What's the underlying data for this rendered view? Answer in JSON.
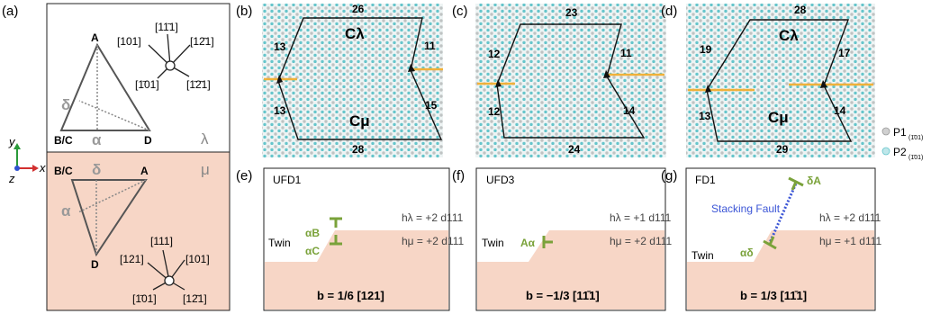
{
  "panels": {
    "a": {
      "label": "(a)",
      "lambda_symbol": "λ",
      "mu_symbol": "μ",
      "top_triangle": {
        "A": "A",
        "BC": "B/C",
        "D": "D",
        "alpha": "α",
        "delta": "δ"
      },
      "bottom_triangle": {
        "A": "A",
        "BC": "B/C",
        "D": "D",
        "alpha": "α",
        "delta": "δ"
      },
      "top_directions": [
        "[101]",
        "[11̄1]",
        "[12̄1]",
        "[1̄01]",
        "[1̄2̄1]"
      ],
      "bottom_directions": [
        "[121]",
        "[111]",
        "[101]",
        "[1̄01]",
        "[12̄1]"
      ],
      "axes": {
        "y": "y",
        "x": "x",
        "z": "z"
      }
    },
    "b": {
      "label": "(b)",
      "top": "26",
      "left_upper": "13",
      "left_lower": "13",
      "right_upper": "11",
      "right_lower": "15",
      "bottom": "28",
      "c_lambda": "Cλ",
      "c_mu": "Cμ"
    },
    "c": {
      "label": "(c)",
      "top": "23",
      "left_upper": "12",
      "left_lower": "12",
      "right_upper": "11",
      "right_lower": "14",
      "bottom": "24"
    },
    "d": {
      "label": "(d)",
      "top": "28",
      "left_upper": "19",
      "left_lower": "13",
      "right_upper": "17",
      "right_lower": "14",
      "bottom": "29",
      "c_lambda": "Cλ",
      "c_mu": "Cμ"
    },
    "legend": {
      "p1": "P1",
      "p1_sub": "(1̄01)",
      "p2": "P2",
      "p2_sub": "(1̄01)"
    },
    "e": {
      "label": "(e)",
      "title": "UFD1",
      "twin": "Twin",
      "h_lambda": "hλ = +2 d111",
      "h_mu": "hμ = +2 d111",
      "disloc1": "αB",
      "disloc2": "αC",
      "burgers": "b = 1/6 [121]"
    },
    "f": {
      "label": "(f)",
      "title": "UFD3",
      "twin": "Twin",
      "h_lambda": "hλ = +1 d111",
      "h_mu": "hμ = +2 d111",
      "disloc1": "Aα",
      "burgers": "b = −1/3 [11̄1]"
    },
    "g": {
      "label": "(g)",
      "title": "FD1",
      "twin": "Twin",
      "h_lambda": "hλ = +2 d111",
      "h_mu": "hμ = +1 d111",
      "disloc1": "δA",
      "disloc2": "αδ",
      "stacking_fault": "Stacking Fault",
      "burgers": "b = 1/3 [11̄1]"
    }
  },
  "colors": {
    "salmon": "#f7d6c6",
    "green": "#7aa23a",
    "blue": "#3b55d6",
    "orange": "#f0b13a",
    "atom_cyan": "#6cc7cc",
    "atom_gray": "#c9c9c9"
  }
}
